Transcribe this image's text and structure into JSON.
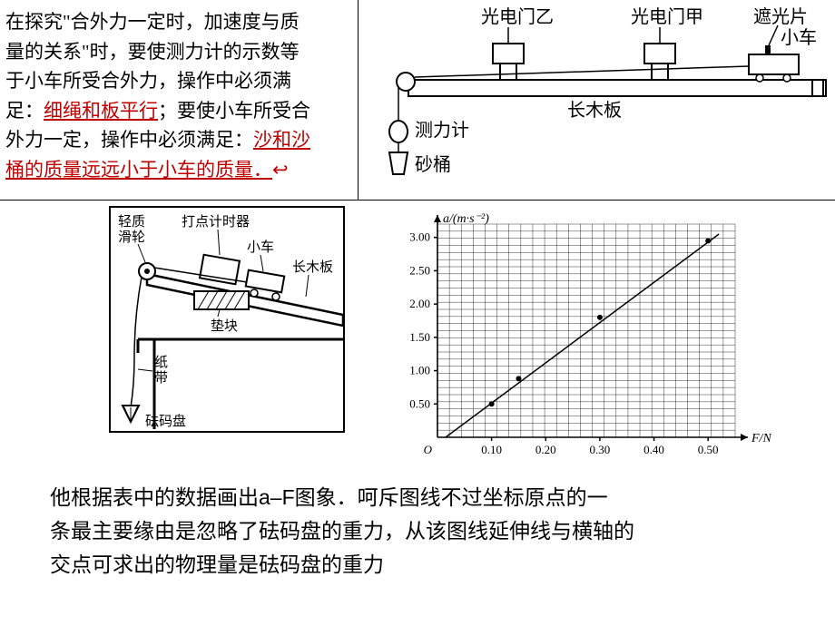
{
  "topText": {
    "line1a": "在探究\"合外力一定时，加速度与质",
    "line2": "量的关系\"时，要使测力计的示数等",
    "line3": "于小车所受合外力，操作中必须满",
    "line4a": "足：",
    "line4hl": "细绳和板平行",
    "line4b": "；要使小车所受合",
    "line5": "外力一定，操作中必须满足：",
    "line5hl": "沙和沙",
    "line6hl": "桶的质量远远小于小车的质量．",
    "wavy": "↩"
  },
  "topDiagram": {
    "labels": {
      "gateB": "光电门乙",
      "gateA": "光电门甲",
      "flag": "遮光片",
      "cart": "小车",
      "board": "长木板",
      "dynamo": "测力计",
      "bucket": "砂桶"
    },
    "colors": {
      "stroke": "#000000",
      "fill_none": "none",
      "fill_white": "#ffffff"
    }
  },
  "inclineDiagram": {
    "labels": {
      "pulley": "轻质\n滑轮",
      "timer": "打点计时器",
      "cart": "小车",
      "board": "长木板",
      "block": "垫块",
      "tape": "纸\n带",
      "pan": "砝码盘"
    }
  },
  "chart": {
    "type": "scatter-with-line",
    "x_label": "F/N",
    "y_label": "a/(m·s⁻²)",
    "xlim": [
      0,
      0.55
    ],
    "ylim": [
      0,
      3.2
    ],
    "x_ticks": [
      0.1,
      0.2,
      0.3,
      0.4,
      0.5
    ],
    "y_ticks": [
      0.5,
      1.0,
      1.5,
      2.0,
      2.5,
      3.0
    ],
    "x_tick_labels": [
      "0.10",
      "0.20",
      "0.30",
      "0.40",
      "0.50"
    ],
    "y_tick_labels": [
      "0.50",
      "1.00",
      "1.50",
      "2.00",
      "2.50",
      "3.00"
    ],
    "origin_label": "O",
    "grid_minor_div_x": 25,
    "grid_minor_div_y": 30,
    "points": [
      {
        "x": 0.1,
        "y": 0.5
      },
      {
        "x": 0.15,
        "y": 0.88
      },
      {
        "x": 0.3,
        "y": 1.8
      },
      {
        "x": 0.5,
        "y": 2.95
      }
    ],
    "line": {
      "x1": 0.015,
      "y1": 0.0,
      "x2": 0.52,
      "y2": 3.05
    },
    "colors": {
      "axis": "#000000",
      "grid": "#000000",
      "point": "#000000",
      "line": "#000000",
      "text": "#000000"
    },
    "axis_fontsize": 14,
    "tick_fontsize": 13,
    "line_width": 1.5,
    "marker_radius": 3
  },
  "bottomText": {
    "l1": "他根据表中的数据画出a–F图象．呵斥图线不过坐标原点的一",
    "l2": "条最主要缘由是忽略了砝码盘的重力，从该图线延伸线与横轴的",
    "l3": "交点可求出的物理量是砝码盘的重力"
  }
}
